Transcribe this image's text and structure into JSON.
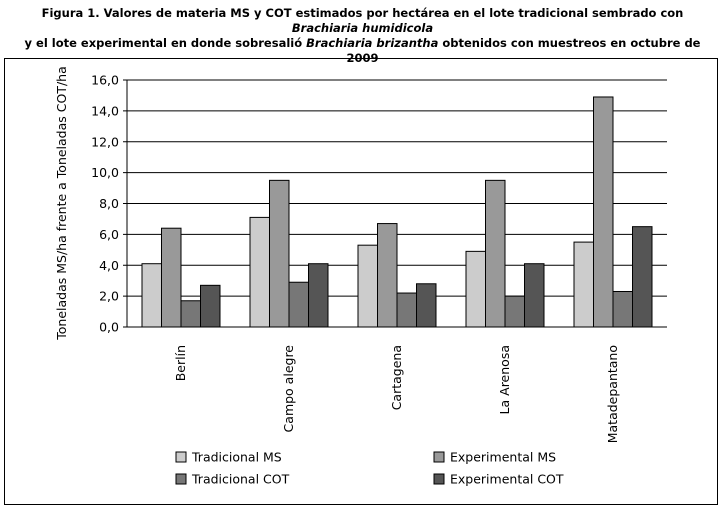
{
  "caption": {
    "line1_a": "Figura 1. Valores de materia MS y COT estimados por hectárea en el lote tradicional sembrado con ",
    "line1_i": "Brachiaria humidicola",
    "line2_a": "y el lote experimental en donde sobresalió ",
    "line2_i": "Brachiaria brizantha",
    "line2_b": " obtenidos con muestreos en octubre de 2009"
  },
  "chart_data": {
    "type": "bar",
    "title": "",
    "xlabel": "",
    "ylabel": "Toneladas MS/ha frente a Toneladas COT/ha",
    "ylim": [
      0,
      16
    ],
    "yticks": [
      "0,0",
      "2,0",
      "4,0",
      "6,0",
      "8,0",
      "10,0",
      "12,0",
      "14,0",
      "16,0"
    ],
    "grid": true,
    "legend_position": "bottom",
    "categories": [
      "Berlín",
      "Campo alegre",
      "Cartagena",
      "La Arenosa",
      "Matadepantano"
    ],
    "series": [
      {
        "name": "Tradicional MS",
        "color": "#cccccc",
        "values": [
          4.1,
          7.1,
          5.3,
          4.9,
          5.5
        ]
      },
      {
        "name": "Experimental MS",
        "color": "#999999",
        "values": [
          6.4,
          9.5,
          6.7,
          9.5,
          14.9
        ]
      },
      {
        "name": "Tradicional COT",
        "color": "#777777",
        "values": [
          1.7,
          2.9,
          2.2,
          2.0,
          2.3
        ]
      },
      {
        "name": "Experimental COT",
        "color": "#555555",
        "values": [
          2.7,
          4.1,
          2.8,
          4.1,
          6.5
        ]
      }
    ]
  }
}
